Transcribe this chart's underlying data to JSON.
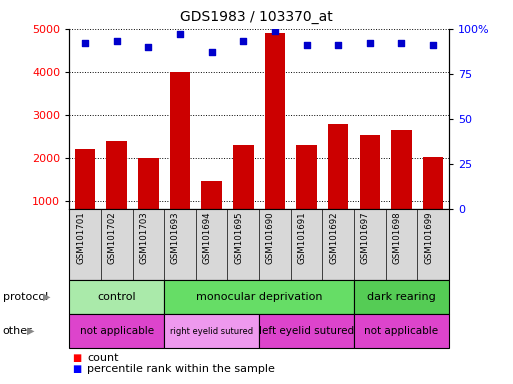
{
  "title": "GDS1983 / 103370_at",
  "samples": [
    "GSM101701",
    "GSM101702",
    "GSM101703",
    "GSM101693",
    "GSM101694",
    "GSM101695",
    "GSM101690",
    "GSM101691",
    "GSM101692",
    "GSM101697",
    "GSM101698",
    "GSM101699"
  ],
  "counts": [
    2200,
    2380,
    2000,
    4000,
    1450,
    2300,
    4900,
    2300,
    2780,
    2520,
    2650,
    2020
  ],
  "percentile_ranks": [
    92,
    93,
    90,
    97,
    87,
    93,
    99,
    91,
    91,
    92,
    92,
    91
  ],
  "ylim_left": [
    800,
    5000
  ],
  "ylim_right": [
    0,
    100
  ],
  "yticks_left": [
    1000,
    2000,
    3000,
    4000,
    5000
  ],
  "yticks_right": [
    0,
    25,
    50,
    75,
    100
  ],
  "bar_color": "#cc0000",
  "dot_color": "#0000cc",
  "protocol_groups": [
    {
      "label": "control",
      "start": 0,
      "end": 3,
      "color": "#aaeaaa"
    },
    {
      "label": "monocular deprivation",
      "start": 3,
      "end": 9,
      "color": "#66dd66"
    },
    {
      "label": "dark rearing",
      "start": 9,
      "end": 12,
      "color": "#55cc55"
    }
  ],
  "other_groups": [
    {
      "label": "not applicable",
      "start": 0,
      "end": 3,
      "color": "#dd44cc"
    },
    {
      "label": "right eyelid sutured",
      "start": 3,
      "end": 6,
      "color": "#ee99ee"
    },
    {
      "label": "left eyelid sutured",
      "start": 6,
      "end": 9,
      "color": "#dd44cc"
    },
    {
      "label": "not applicable",
      "start": 9,
      "end": 12,
      "color": "#dd44cc"
    }
  ]
}
